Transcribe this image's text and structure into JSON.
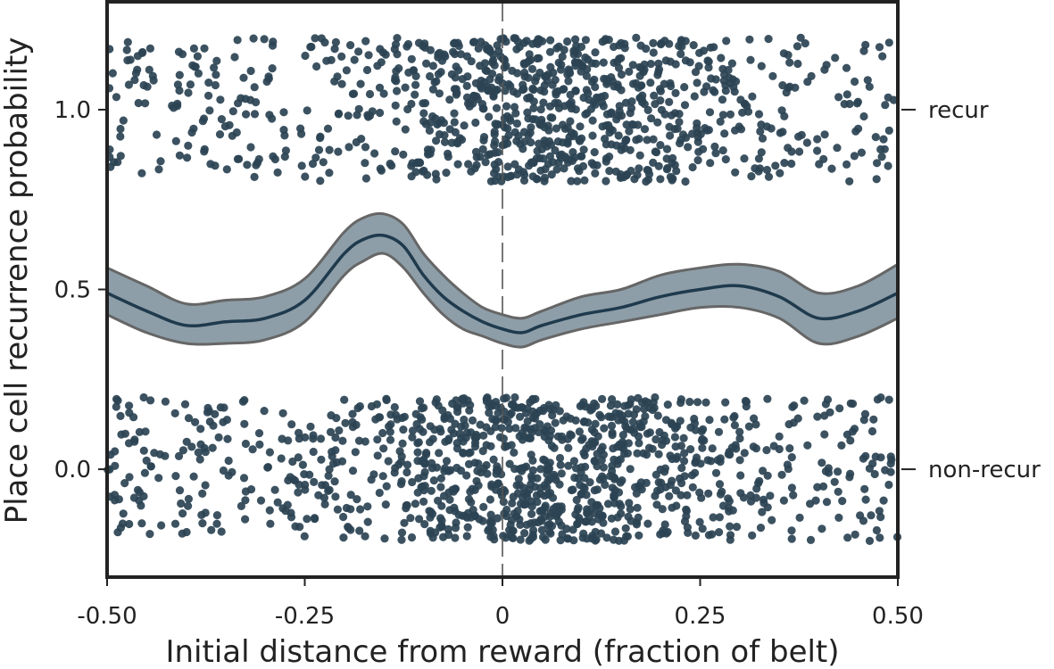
{
  "chart_data": {
    "type": "scatter",
    "title": "",
    "xlabel": "Initial distance from reward (fraction of belt)",
    "ylabel": "Place cell recurrence probability",
    "xlim": [
      -0.5,
      0.5
    ],
    "ylim": [
      -0.3,
      1.3
    ],
    "xticks": [
      {
        "value": -0.5,
        "label": "-0.50"
      },
      {
        "value": -0.25,
        "label": "-0.25"
      },
      {
        "value": 0,
        "label": "0"
      },
      {
        "value": 0.25,
        "label": "0.25"
      },
      {
        "value": 0.5,
        "label": "0.50"
      }
    ],
    "yticks": [
      {
        "value": 0.0,
        "label": "0.0"
      },
      {
        "value": 0.5,
        "label": "0.5"
      },
      {
        "value": 1.0,
        "label": "1.0"
      }
    ],
    "right_labels": [
      {
        "value": 1.0,
        "label": "recur"
      },
      {
        "value": 0.0,
        "label": "non-recur"
      }
    ],
    "reference_line": {
      "x": 0,
      "style": "dashed"
    },
    "grid": false,
    "jitter": 0.2,
    "point_color": "#2b4354",
    "curve_color": "#1f3a4d",
    "band_color": "#8d9ea8",
    "band_edge_color": "#666666",
    "curve": {
      "x": [
        -0.5,
        -0.45,
        -0.4,
        -0.35,
        -0.3,
        -0.25,
        -0.2,
        -0.175,
        -0.15,
        -0.125,
        -0.1,
        -0.075,
        -0.05,
        -0.025,
        0,
        0.025,
        0.05,
        0.1,
        0.15,
        0.2,
        0.25,
        0.3,
        0.35,
        0.4,
        0.45,
        0.5
      ],
      "y": [
        0.49,
        0.44,
        0.4,
        0.41,
        0.42,
        0.47,
        0.6,
        0.64,
        0.65,
        0.62,
        0.54,
        0.48,
        0.44,
        0.41,
        0.39,
        0.38,
        0.4,
        0.43,
        0.45,
        0.48,
        0.5,
        0.51,
        0.48,
        0.42,
        0.44,
        0.49
      ],
      "lower": [
        0.43,
        0.38,
        0.35,
        0.35,
        0.36,
        0.41,
        0.54,
        0.58,
        0.6,
        0.56,
        0.49,
        0.43,
        0.39,
        0.37,
        0.35,
        0.34,
        0.36,
        0.39,
        0.41,
        0.43,
        0.45,
        0.45,
        0.42,
        0.35,
        0.37,
        0.42
      ],
      "upper": [
        0.56,
        0.51,
        0.46,
        0.47,
        0.48,
        0.53,
        0.66,
        0.7,
        0.71,
        0.68,
        0.6,
        0.54,
        0.49,
        0.45,
        0.43,
        0.42,
        0.44,
        0.48,
        0.5,
        0.54,
        0.56,
        0.57,
        0.55,
        0.49,
        0.51,
        0.57
      ]
    },
    "series": [
      {
        "outcome": 1,
        "count": 1000
      },
      {
        "outcome": 0,
        "count": 1150
      }
    ]
  }
}
